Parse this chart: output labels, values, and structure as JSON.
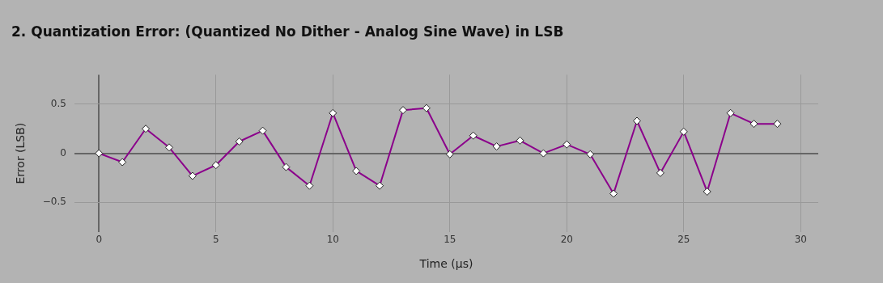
{
  "chart_data": {
    "type": "line",
    "title": "2. Quantization Error: (Quantized No Dither - Analog Sine Wave) in LSB",
    "xlabel": "Time (µs)",
    "ylabel": "Error (LSB)",
    "x": [
      0,
      1,
      2,
      3,
      4,
      5,
      6,
      7,
      8,
      9,
      10,
      11,
      12,
      13,
      14,
      15,
      16,
      17,
      18,
      19,
      20,
      21,
      22,
      23,
      24,
      25,
      26,
      27,
      28,
      29
    ],
    "series": [
      {
        "color": "#8b008b",
        "values": [
          0,
          -0.09,
          0.25,
          0.06,
          -0.23,
          -0.12,
          0.12,
          0.23,
          -0.14,
          -0.33,
          0.41,
          -0.18,
          -0.33,
          0.44,
          0.46,
          -0.01,
          0.18,
          0.07,
          0.13,
          0,
          0.09,
          -0.01,
          -0.41,
          0.33,
          -0.2,
          0.22,
          -0.39,
          0.41,
          0.3,
          0.3
        ]
      }
    ],
    "xlim": [
      -1.05,
      30.75
    ],
    "ylim": [
      -0.8,
      0.8
    ],
    "xticks": [
      0,
      5,
      10,
      15,
      20,
      25,
      30
    ],
    "yticks": [
      {
        "value": -0.5,
        "label": "−0.5"
      },
      0,
      0.5
    ],
    "grid": true,
    "legend": false,
    "marker": "diamond",
    "line_style": "solid"
  }
}
